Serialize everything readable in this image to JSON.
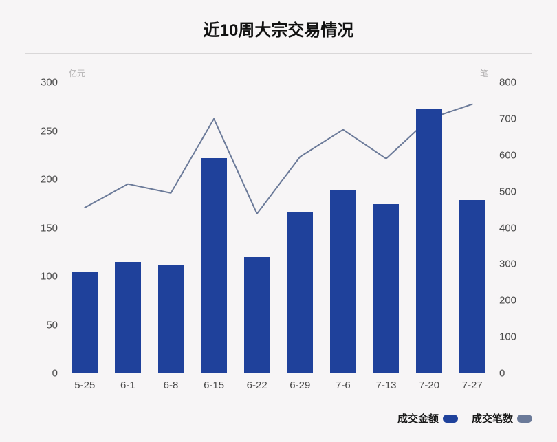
{
  "chart": {
    "type": "bar+line",
    "title": "近10周大宗交易情况",
    "title_fontsize": 24,
    "title_color": "#111111",
    "background_color": "#f7f5f6",
    "underline_color": "#d9d7d8",
    "left_axis": {
      "unit_label": "亿元",
      "min": 0,
      "max": 300,
      "step": 50,
      "label_color": "#b6b4b5",
      "tick_color": "#4a4a4a",
      "tick_fontsize": 15
    },
    "right_axis": {
      "unit_label": "笔",
      "min": 0,
      "max": 800,
      "step": 100,
      "label_color": "#b6b4b5",
      "tick_color": "#4a4a4a",
      "tick_fontsize": 15
    },
    "categories": [
      "5-25",
      "6-1",
      "6-8",
      "6-15",
      "6-22",
      "6-29",
      "7-6",
      "7-13",
      "7-20",
      "7-27"
    ],
    "x_tick_color": "#4a4a4a",
    "x_tick_fontsize": 15,
    "baseline_color": "#4a4a4a",
    "bars": {
      "values": [
        104,
        114,
        111,
        221,
        119,
        166,
        188,
        174,
        272,
        178
      ],
      "color": "#1f419b",
      "width_fraction": 0.6
    },
    "line": {
      "values": [
        455,
        520,
        495,
        700,
        438,
        595,
        670,
        590,
        700,
        740
      ],
      "color": "#6b7a99",
      "width": 2
    },
    "legend": {
      "bar_label": "成交金额",
      "line_label": "成交笔数",
      "text_color": "#1a1a1a",
      "fontsize": 15
    }
  }
}
